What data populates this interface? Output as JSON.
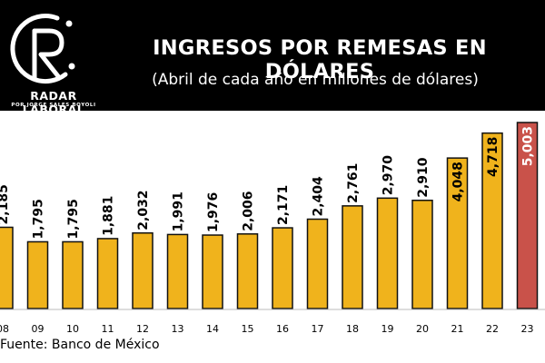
{
  "header": {
    "title": "INGRESOS POR REMESAS EN DÓLARES",
    "subtitle": "(Abril de cada año en millones de dólares)",
    "brand_name": "RADAR LABORAL",
    "brand_byline": "POR JORGE SALES BOYOLI",
    "logo_icon": "radar-r-logo-icon"
  },
  "source": "Fuente: Banco de México",
  "colors": {
    "bar": "#f0b31c",
    "bar_highlight": "#c9524a",
    "bar_outline": "#111111",
    "header_bg": "#000000"
  },
  "chart_data": {
    "type": "bar",
    "categories": [
      "08",
      "09",
      "10",
      "11",
      "12",
      "13",
      "14",
      "15",
      "16",
      "17",
      "18",
      "19",
      "20",
      "21",
      "22",
      "23"
    ],
    "values": [
      2185,
      1795,
      1795,
      1881,
      2032,
      1991,
      1976,
      2006,
      2171,
      2404,
      2761,
      2970,
      2910,
      4048,
      4718,
      5003
    ],
    "value_labels": [
      "2,185",
      "1,795",
      "1,795",
      "1,881",
      "2,032",
      "1,991",
      "1,976",
      "2,006",
      "2,171",
      "2,404",
      "2,761",
      "2,970",
      "2,910",
      "4,048",
      "4,718",
      "5,003"
    ],
    "highlight_index": 15,
    "title": "INGRESOS POR REMESAS EN DÓLARES",
    "xlabel": "",
    "ylabel": "",
    "ylim": [
      0,
      5003
    ],
    "grid": false,
    "legend": "none"
  }
}
